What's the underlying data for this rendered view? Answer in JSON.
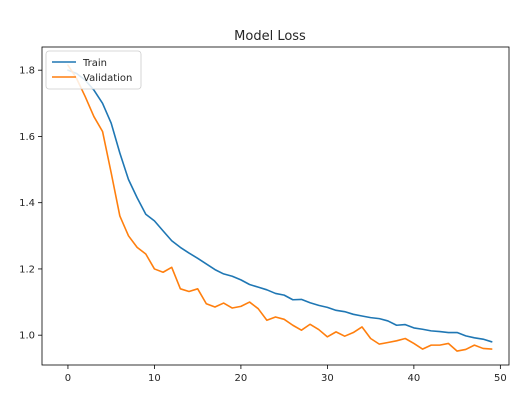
{
  "chart_data": {
    "type": "line",
    "title": "Model Loss",
    "xlabel": "",
    "ylabel": "",
    "xlim": [
      -3,
      51
    ],
    "ylim": [
      0.91,
      1.87
    ],
    "xticks": [
      0,
      10,
      20,
      30,
      40,
      50
    ],
    "yticks": [
      1.0,
      1.2,
      1.4,
      1.6,
      1.8
    ],
    "xtick_labels": [
      "0",
      "10",
      "20",
      "30",
      "40",
      "50"
    ],
    "ytick_labels": [
      "1.0",
      "1.2",
      "1.4",
      "1.6",
      "1.8"
    ],
    "grid": false,
    "legend_position": "top-left",
    "x": [
      0,
      1,
      2,
      3,
      4,
      5,
      6,
      7,
      8,
      9,
      10,
      11,
      12,
      13,
      14,
      15,
      16,
      17,
      18,
      19,
      20,
      21,
      22,
      23,
      24,
      25,
      26,
      27,
      28,
      29,
      30,
      31,
      32,
      33,
      34,
      35,
      36,
      37,
      38,
      39,
      40,
      41,
      42,
      43,
      44,
      45,
      46,
      47,
      48,
      49
    ],
    "series": [
      {
        "name": "Train",
        "color": "#1f77b4",
        "values": [
          1.8,
          1.79,
          1.77,
          1.74,
          1.7,
          1.64,
          1.55,
          1.47,
          1.415,
          1.365,
          1.345,
          1.315,
          1.285,
          1.265,
          1.248,
          1.232,
          1.215,
          1.198,
          1.185,
          1.178,
          1.167,
          1.153,
          1.145,
          1.137,
          1.126,
          1.121,
          1.107,
          1.108,
          1.098,
          1.09,
          1.084,
          1.075,
          1.071,
          1.063,
          1.058,
          1.053,
          1.05,
          1.043,
          1.03,
          1.032,
          1.022,
          1.018,
          1.013,
          1.011,
          1.008,
          1.008,
          0.998,
          0.992,
          0.988,
          0.98
        ]
      },
      {
        "name": "Validation",
        "color": "#ff7f0e",
        "values": [
          1.815,
          1.775,
          1.72,
          1.66,
          1.615,
          1.49,
          1.36,
          1.3,
          1.265,
          1.245,
          1.2,
          1.19,
          1.205,
          1.14,
          1.132,
          1.14,
          1.095,
          1.085,
          1.097,
          1.082,
          1.087,
          1.1,
          1.08,
          1.045,
          1.055,
          1.048,
          1.03,
          1.015,
          1.033,
          1.017,
          0.995,
          1.01,
          0.997,
          1.008,
          1.025,
          0.99,
          0.973,
          0.978,
          0.983,
          0.99,
          0.975,
          0.958,
          0.97,
          0.97,
          0.975,
          0.952,
          0.957,
          0.97,
          0.96,
          0.958
        ]
      }
    ]
  }
}
